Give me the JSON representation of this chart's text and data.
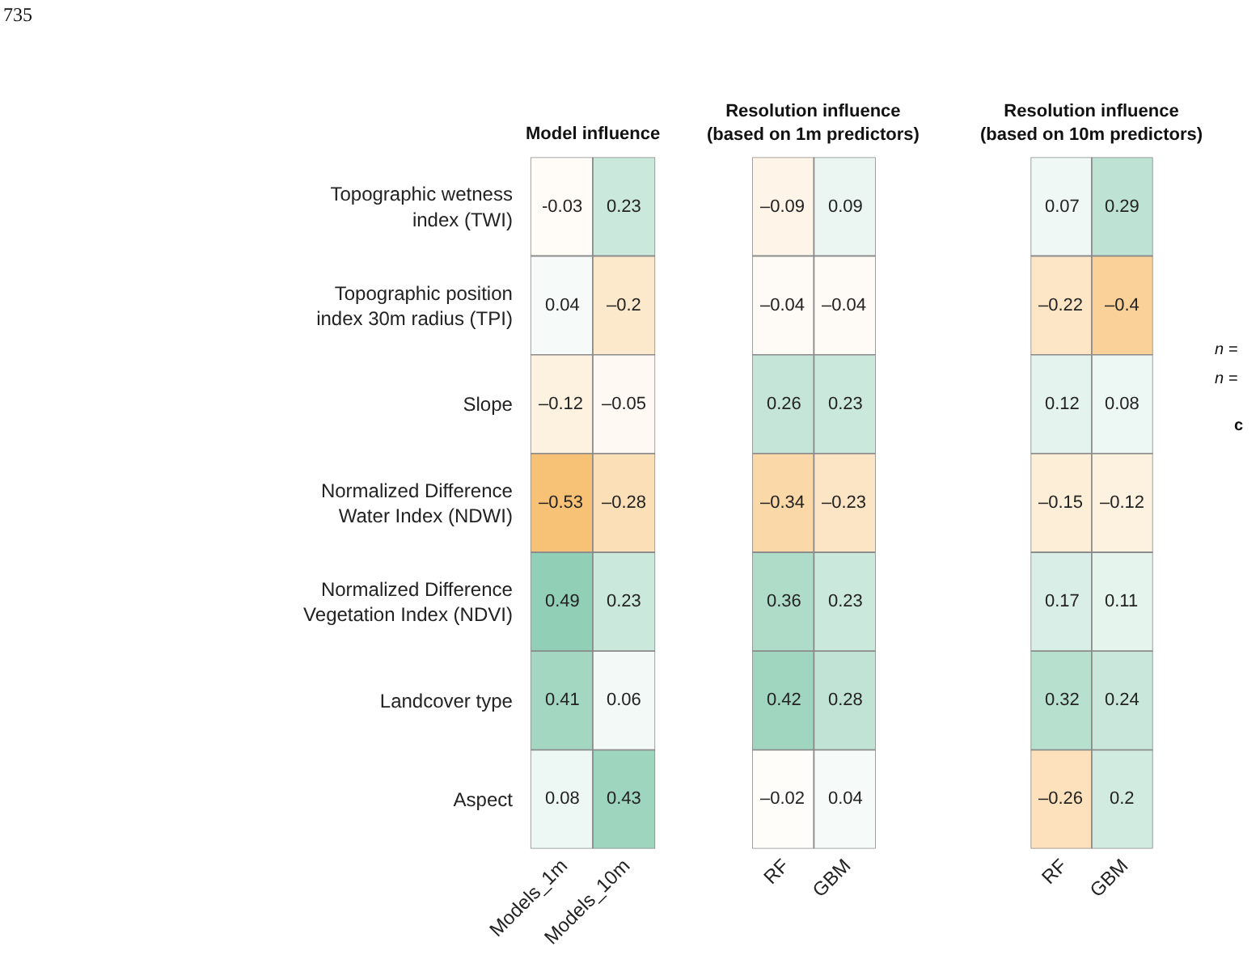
{
  "chart_data": [
    {
      "type": "heatmap",
      "title": "Model influence",
      "categories": [
        "Models_1m",
        "Models_10m"
      ],
      "y_categories": [
        "Topographic wetness\nindex (TWI)",
        "Topographic position\nindex 30m radius (TPI)",
        "Slope",
        "Normalized Difference\nWater Index (NDWI)",
        "Normalized Difference\nVegetation Index (NDVI)",
        "Landcover type",
        "Aspect"
      ],
      "cells": [
        [
          -0.03,
          0.23
        ],
        [
          0.04,
          -0.2
        ],
        [
          -0.12,
          -0.05
        ],
        [
          -0.53,
          -0.28
        ],
        [
          0.49,
          0.23
        ],
        [
          0.41,
          0.06
        ],
        [
          0.08,
          0.43
        ]
      ],
      "cell_labels": [
        [
          "-0.03",
          "0.23"
        ],
        [
          "0.04",
          "–0.2"
        ],
        [
          "–0.12",
          "–0.05"
        ],
        [
          "–0.53",
          "–0.28"
        ],
        [
          "0.49",
          "0.23"
        ],
        [
          "0.41",
          "0.06"
        ],
        [
          "0.08",
          "0.43"
        ]
      ],
      "annotations": [
        "735"
      ]
    },
    {
      "type": "heatmap",
      "title": "Resolution influence\n(based on 1m predictors)",
      "categories": [
        "RF",
        "GBM"
      ],
      "y_categories": [
        "Topographic wetness\nindex (TWI)",
        "Topographic position\nindex 30m radius (TPI)",
        "Slope",
        "Normalized Difference\nWater Index (NDWI)",
        "Normalized Difference\nVegetation Index (NDVI)",
        "Landcover type",
        "Aspect"
      ],
      "cells": [
        [
          -0.09,
          0.09
        ],
        [
          -0.04,
          -0.04
        ],
        [
          0.26,
          0.23
        ],
        [
          -0.34,
          -0.23
        ],
        [
          0.36,
          0.23
        ],
        [
          0.42,
          0.28
        ],
        [
          -0.02,
          0.04
        ]
      ],
      "cell_labels": [
        [
          "–0.09",
          "0.09"
        ],
        [
          "–0.04",
          "–0.04"
        ],
        [
          "0.26",
          "0.23"
        ],
        [
          "–0.34",
          "–0.23"
        ],
        [
          "0.36",
          "0.23"
        ],
        [
          "0.42",
          "0.28"
        ],
        [
          "–0.02",
          "0.04"
        ]
      ],
      "tick_labels": "x"
    },
    {
      "type": "heatmap",
      "title": "Resolution influence\n(based on 10m predictors)",
      "categories": [
        "RF",
        "GBM"
      ],
      "y_categories": [
        "Topographic wetness\nindex (TWI)",
        "Topographic position\nindex 30m radius (TPI)",
        "Slope",
        "Normalized Difference\nWater Index (NDWI)",
        "Normalized Difference\nVegetation Index (NDVI)",
        "Landcover type",
        "Aspect"
      ],
      "cells": [
        [
          0.07,
          0.29
        ],
        [
          -0.22,
          -0.4
        ],
        [
          0.12,
          0.08
        ],
        [
          -0.15,
          -0.12
        ],
        [
          0.17,
          0.11
        ],
        [
          0.32,
          0.24
        ],
        [
          -0.26,
          0.2
        ]
      ],
      "cell_labels": [
        [
          "0.07",
          "0.29"
        ],
        [
          "–0.22",
          "–0.4"
        ],
        [
          "0.12",
          "0.08"
        ],
        [
          "–0.15",
          "–0.12"
        ],
        [
          "0.17",
          "0.11"
        ],
        [
          "0.32",
          "0.24"
        ],
        [
          "–0.26",
          "0.2"
        ]
      ],
      "tick_labels": "x",
      "annotations": [
        "n =",
        "n =",
        "c"
      ]
    }
  ]
}
